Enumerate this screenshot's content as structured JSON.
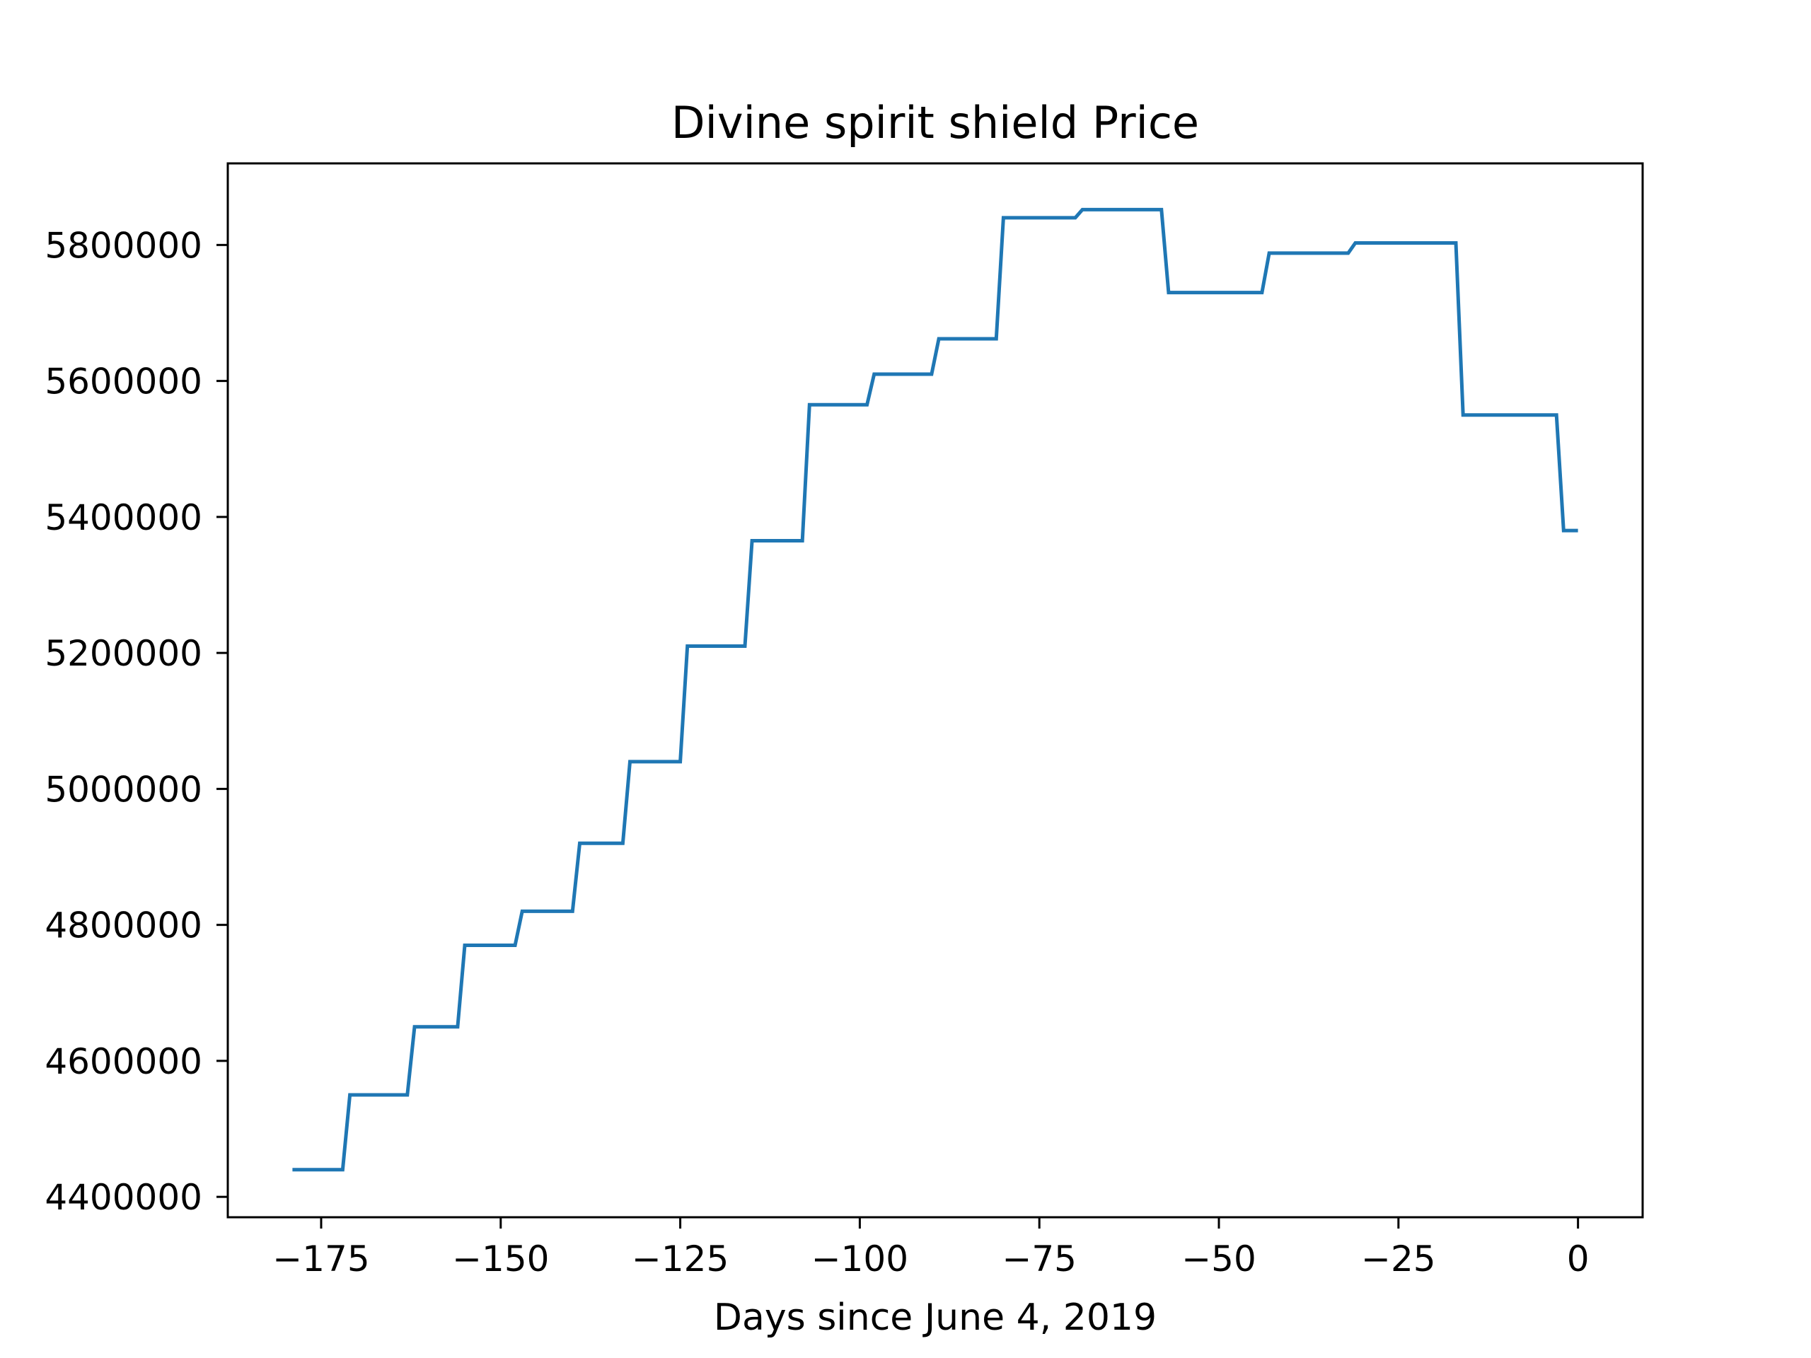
{
  "chart_data": {
    "type": "line",
    "title": "Divine spirit shield Price",
    "xlabel": "Days since June 4, 2019",
    "ylabel": "",
    "xlim": [
      -188,
      9
    ],
    "ylim": [
      4370000,
      5920000
    ],
    "xticks": [
      -175,
      -150,
      -125,
      -100,
      -75,
      -50,
      -25,
      0
    ],
    "xtick_labels": [
      "−175",
      "−150",
      "−125",
      "−100",
      "−75",
      "−50",
      "−25",
      "0"
    ],
    "yticks": [
      4400000,
      4600000,
      4800000,
      5000000,
      5200000,
      5400000,
      5600000,
      5800000
    ],
    "ytick_labels": [
      "4400000",
      "4600000",
      "4800000",
      "5000000",
      "5200000",
      "5400000",
      "5600000",
      "5800000"
    ],
    "grid": false,
    "series": [
      {
        "color": "#1f77b4",
        "x": [
          -179,
          -172,
          -171,
          -163,
          -162,
          -156,
          -155,
          -148,
          -147,
          -140,
          -139,
          -133,
          -132,
          -125,
          -124,
          -116,
          -115,
          -108,
          -107,
          -99,
          -98,
          -90,
          -89,
          -81,
          -80,
          -70,
          -69,
          -58,
          -57,
          -44,
          -43,
          -32,
          -31,
          -17,
          -16,
          -3,
          -2,
          0
        ],
        "y": [
          4440000,
          4440000,
          4550000,
          4550000,
          4650000,
          4650000,
          4770000,
          4770000,
          4820000,
          4820000,
          4920000,
          4920000,
          5040000,
          5040000,
          5210000,
          5210000,
          5365000,
          5365000,
          5565000,
          5565000,
          5610000,
          5610000,
          5662000,
          5662000,
          5840000,
          5840000,
          5852000,
          5852000,
          5730000,
          5730000,
          5788000,
          5788000,
          5803000,
          5803000,
          5550000,
          5550000,
          5380000,
          5380000
        ]
      }
    ]
  }
}
